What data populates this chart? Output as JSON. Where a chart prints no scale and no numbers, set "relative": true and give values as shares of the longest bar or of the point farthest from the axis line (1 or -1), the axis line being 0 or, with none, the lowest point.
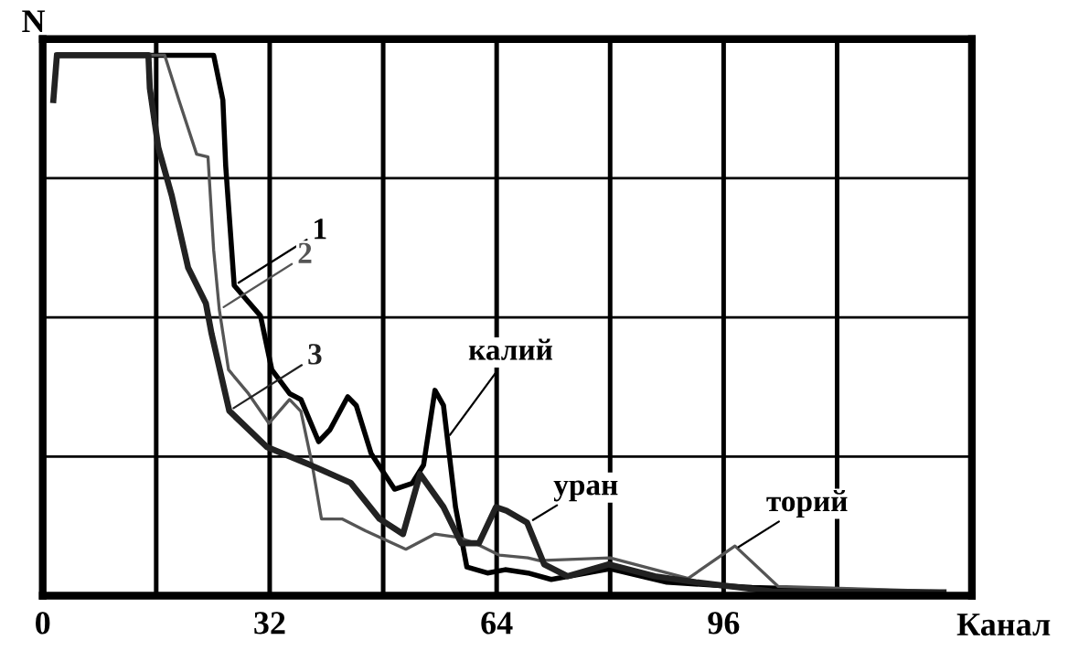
{
  "chart_data": {
    "type": "line",
    "relative": true,
    "xlabel": "Канал",
    "ylabel": "N",
    "xlim": [
      0,
      131
    ],
    "xticks": [
      0,
      {
        "value": 16,
        "label": null
      },
      32,
      {
        "value": 48,
        "label": null
      },
      64,
      {
        "value": 80,
        "label": null
      },
      96,
      {
        "value": 112,
        "label": null
      }
    ],
    "grid": true,
    "legend": false,
    "marker": "none",
    "line_style": "solid",
    "series": [
      {
        "name": "1",
        "color": "#000000",
        "x": [
          2,
          24.1,
          25.4,
          25.8,
          27.0,
          30.7,
          32.3,
          34.8,
          36.4,
          38.9,
          40.5,
          43,
          44.2,
          46.3,
          49.6,
          52.1,
          53.7,
          55.3,
          56.5,
          58.2,
          59.8,
          62.7,
          65.2,
          68.4,
          71.7,
          80,
          88,
          100,
          127
        ],
        "values": [
          1,
          1,
          0.917,
          0.795,
          0.574,
          0.518,
          0.418,
          0.374,
          0.363,
          0.285,
          0.307,
          0.368,
          0.352,
          0.263,
          0.197,
          0.208,
          0.242,
          0.38,
          0.352,
          0.164,
          0.053,
          0.042,
          0.048,
          0.042,
          0.03,
          0.05,
          0.025,
          0.015,
          0.005
        ]
      },
      {
        "name": "2",
        "color": "#555555",
        "x": [
          2,
          17.2,
          19.2,
          21.7,
          23.3,
          24.1,
          24.9,
          26.2,
          29,
          31.9,
          34.8,
          36.4,
          38,
          39.3,
          42.2,
          45.5,
          51.2,
          55.3,
          58.5,
          61,
          64.4,
          68.4,
          70,
          80,
          91,
          97.6,
          103.7,
          127
        ],
        "values": [
          1,
          1,
          0.917,
          0.817,
          0.812,
          0.64,
          0.529,
          0.418,
          0.374,
          0.319,
          0.363,
          0.341,
          0.242,
          0.142,
          0.142,
          0.12,
          0.086,
          0.114,
          0.108,
          0.097,
          0.075,
          0.07,
          0.065,
          0.07,
          0.032,
          0.092,
          0.017,
          0.008
        ]
      },
      {
        "name": "3",
        "color": "#222222",
        "x": [
          1.5,
          2,
          14.9,
          15.1,
          16.3,
          18.2,
          20.5,
          23,
          23.8,
          26.3,
          31.6,
          37.7,
          43.4,
          47.5,
          50.8,
          53.2,
          56.5,
          59,
          61.5,
          63.9,
          65.4,
          68.3,
          70.7,
          74,
          79.8,
          86.3,
          92.1,
          102.8,
          127
        ],
        "values": [
          0.917,
          1,
          1,
          0.939,
          0.829,
          0.74,
          0.607,
          0.541,
          0.485,
          0.342,
          0.275,
          0.242,
          0.209,
          0.142,
          0.114,
          0.225,
          0.164,
          0.097,
          0.097,
          0.164,
          0.157,
          0.135,
          0.058,
          0.036,
          0.058,
          0.036,
          0.025,
          0.008,
          0.006
        ]
      }
    ],
    "annotations": [
      {
        "text": "калий",
        "x": 57,
        "y": 0.29
      },
      {
        "text": "уран",
        "x": 68.5,
        "y": 0.135
      },
      {
        "text": "торий",
        "x": 97.5,
        "y": 0.085
      }
    ]
  }
}
